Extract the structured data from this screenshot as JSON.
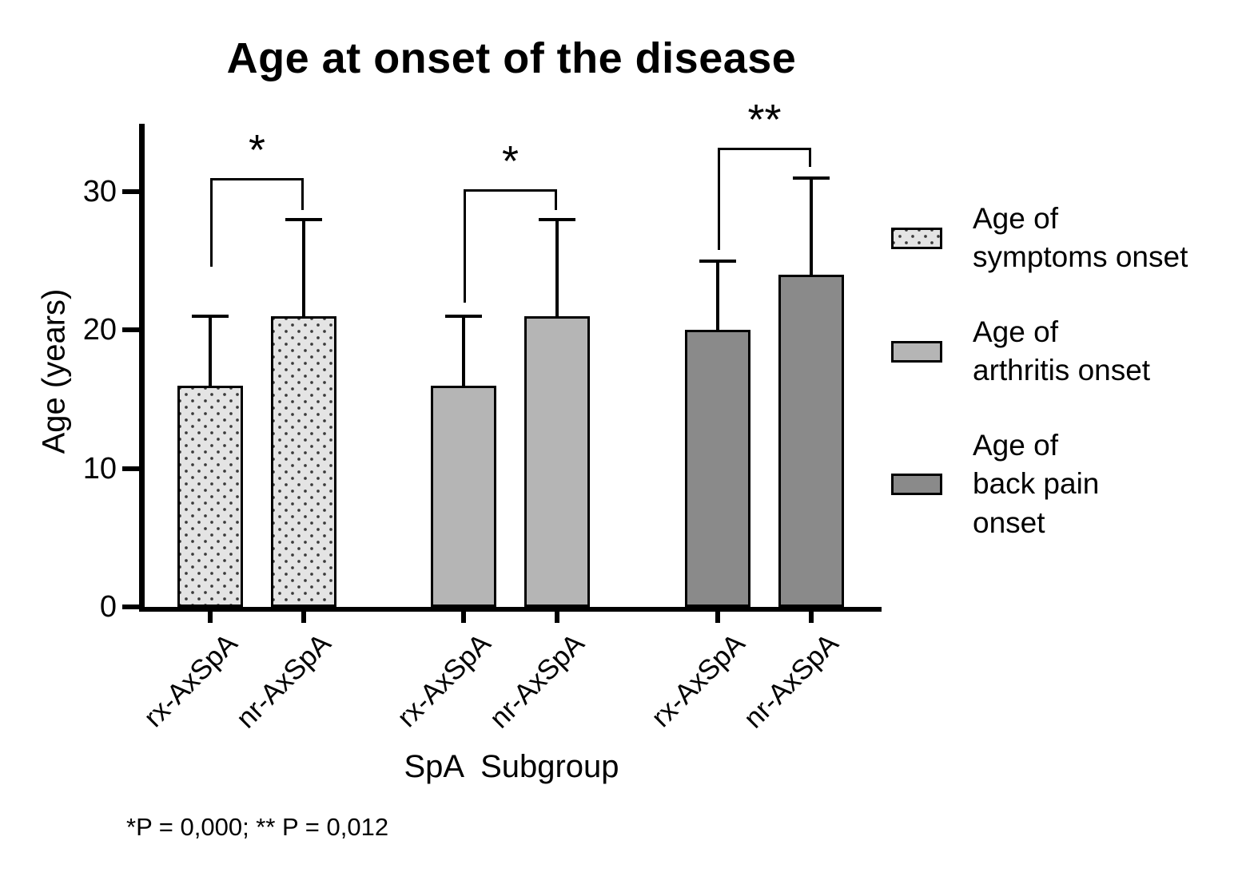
{
  "footnote": "*P = 0,000; ** P = 0,012",
  "chart_data": {
    "type": "bar",
    "title": "Age at onset of the disease",
    "xlabel": "SpA  Subgroup",
    "ylabel": "Age (years)",
    "ylim": [
      0,
      35
    ],
    "yticks": [
      0,
      10,
      20,
      30
    ],
    "grid": false,
    "legend_position": "right",
    "group_labels": [
      "rx-AxSpA",
      "nr-AxSpA",
      "rx-AxSpA",
      "nr-AxSpA",
      "rx-AxSpA",
      "nr-AxSpA"
    ],
    "series": [
      {
        "name": "Age of symptoms onset",
        "values": [
          16,
          21
        ],
        "sd": [
          5,
          7
        ],
        "fill": "#e4e4e4",
        "pattern": "dots"
      },
      {
        "name": "Age of arthritis onset",
        "values": [
          16,
          21
        ],
        "sd": [
          5,
          7
        ],
        "fill": "#b5b5b5",
        "pattern": "solid"
      },
      {
        "name": "Age of back pain onset",
        "values": [
          20,
          24
        ],
        "sd": [
          5,
          7
        ],
        "fill": "#8a8a8a",
        "pattern": "solid"
      }
    ],
    "comparisons": [
      {
        "label": "*",
        "top": 31.0,
        "left_end": 24.6,
        "right_end": 28.7
      },
      {
        "label": "*",
        "top": 30.2,
        "left_end": 22.0,
        "right_end": 28.7
      },
      {
        "label": "**",
        "top": 33.2,
        "left_end": 25.8,
        "right_end": 31.8
      }
    ]
  },
  "legend": {
    "items": [
      {
        "lines": [
          "Age of",
          "symptoms onset"
        ]
      },
      {
        "lines": [
          "Age of",
          "arthritis onset"
        ]
      },
      {
        "lines": [
          "Age of",
          "back pain",
          "onset"
        ]
      }
    ]
  }
}
